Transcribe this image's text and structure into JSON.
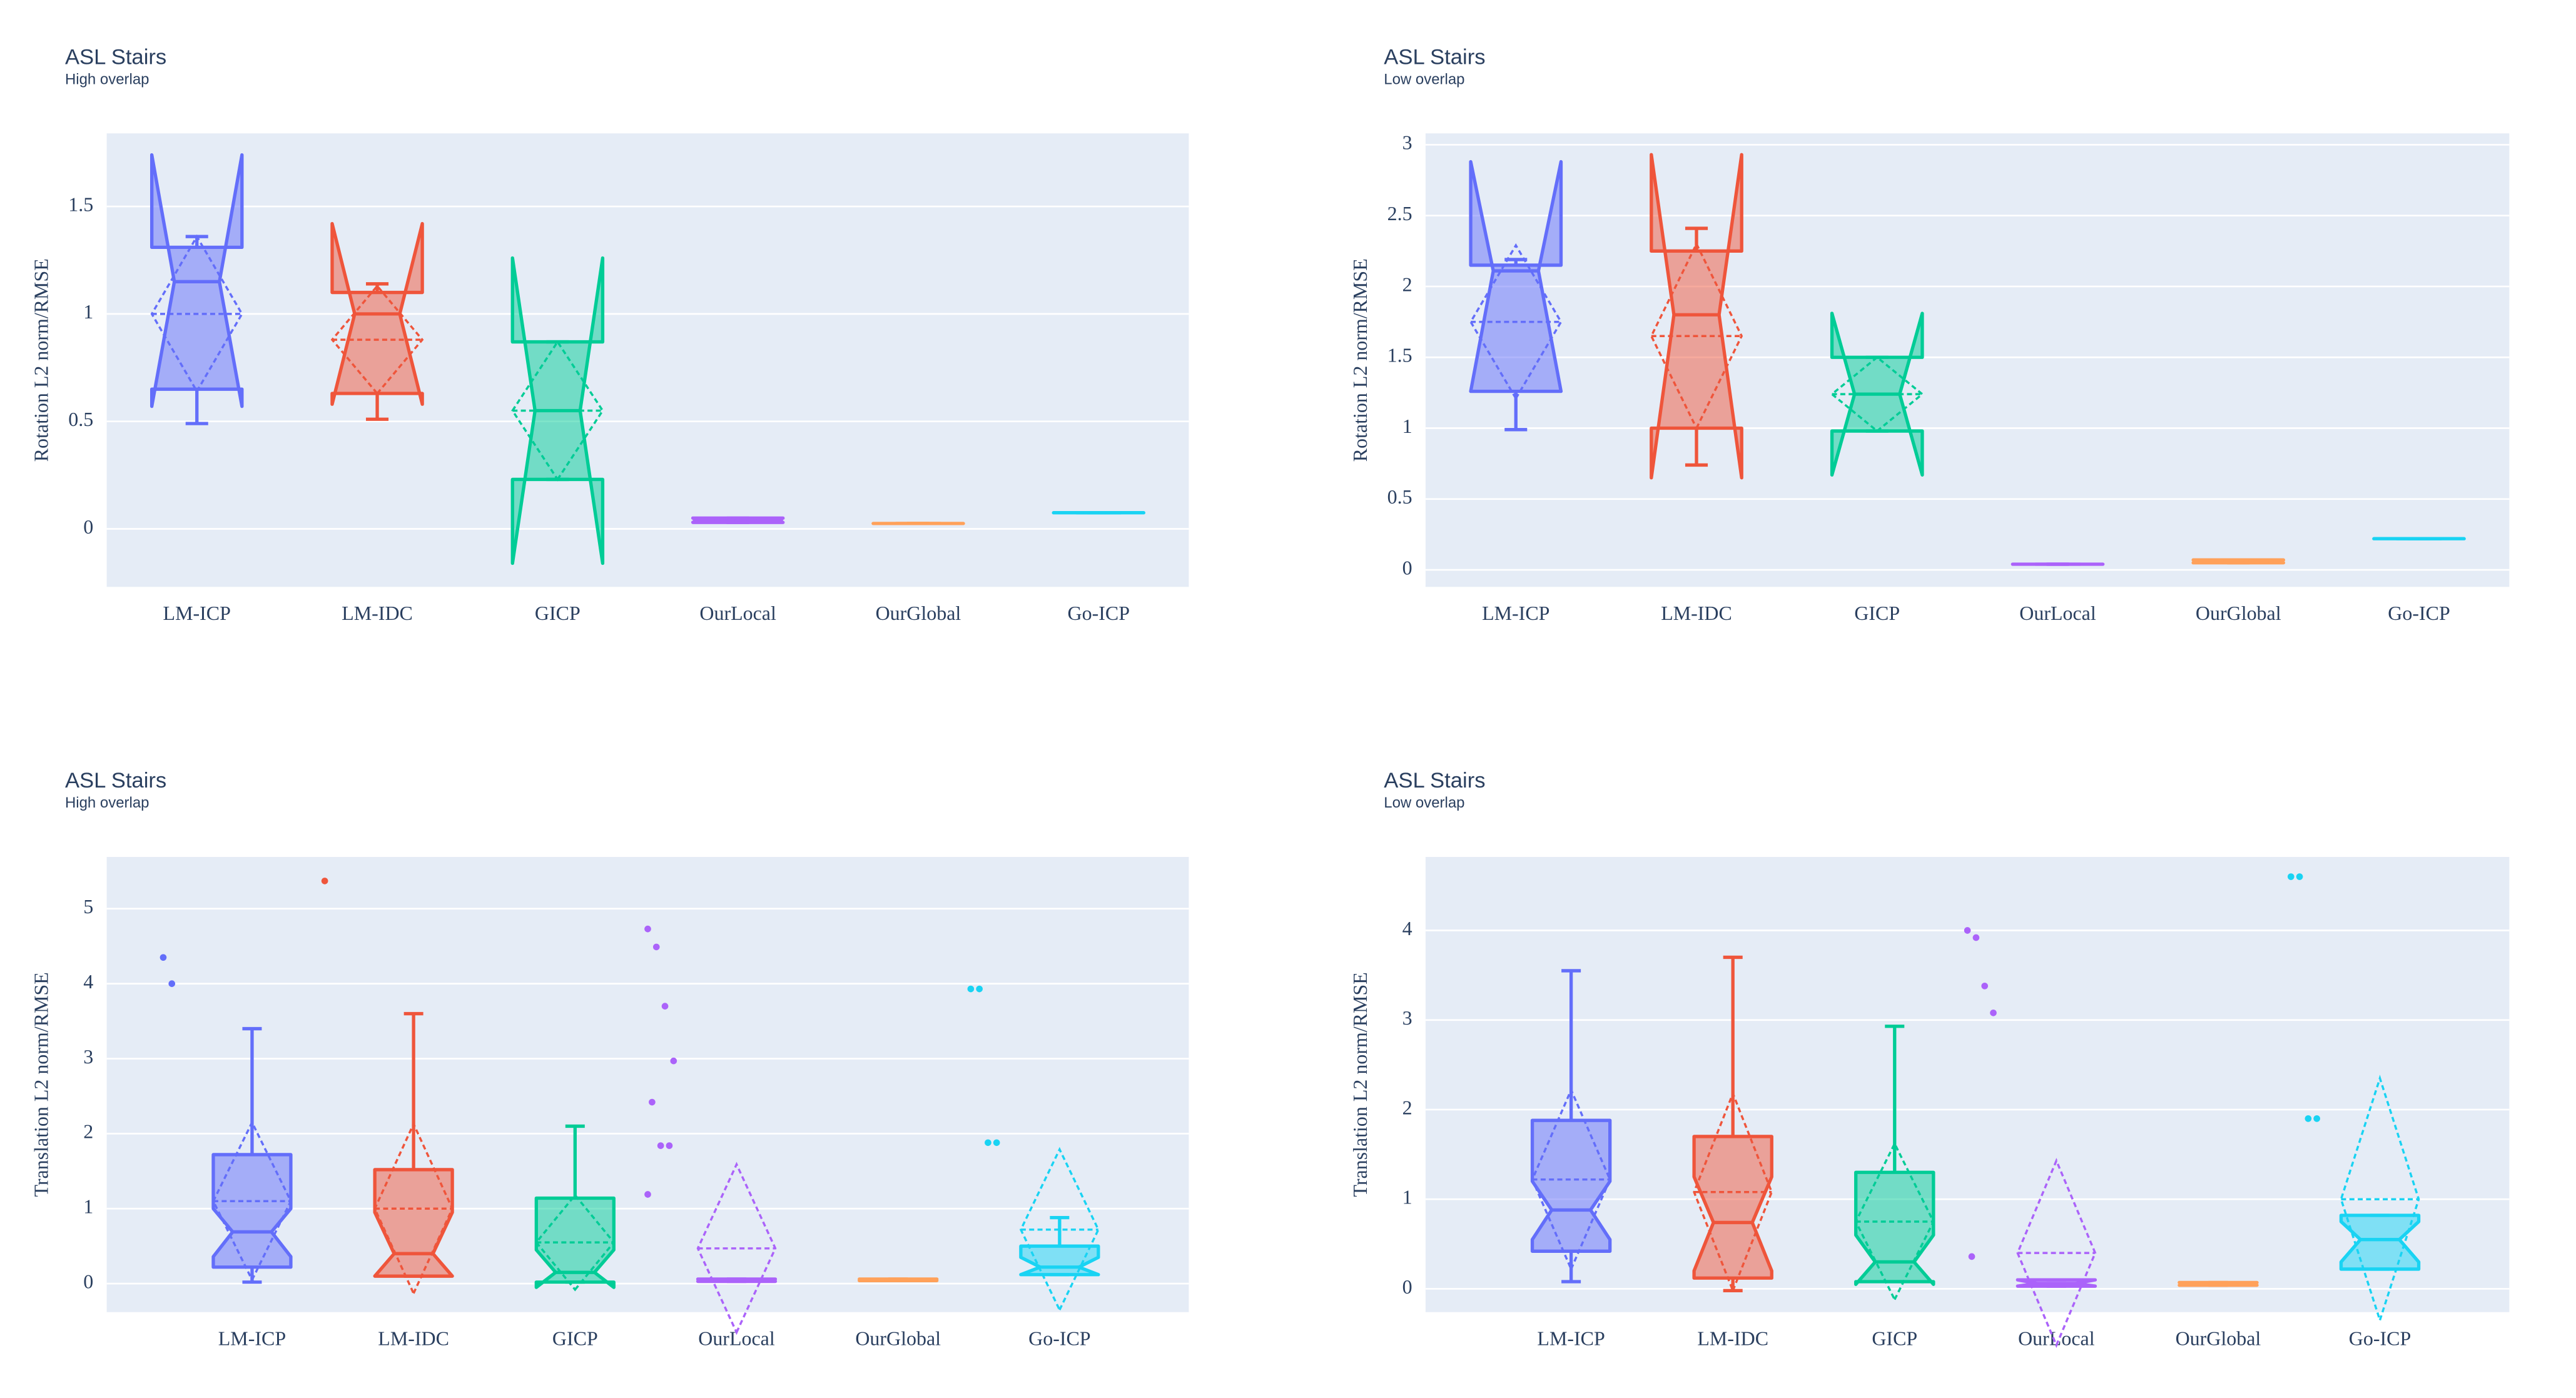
{
  "chart_data": [
    {
      "type": "box",
      "title": "ASL Stairs",
      "subtitle": "High overlap",
      "y_label": "Rotation L2 norm/RMSE",
      "ylim": [
        -0.27,
        1.84
      ],
      "yticks": [
        0,
        0.5,
        1,
        1.5
      ],
      "grid": true,
      "boxpoints": false,
      "series": [
        {
          "name": "LM-ICP",
          "color": "#636efa",
          "q1": 0.65,
          "median": 1.15,
          "q3": 1.31,
          "lowerfence": 0.49,
          "upperfence": 1.36,
          "notch_low": 0.57,
          "notch_high": 1.74,
          "mean": 1.0,
          "sd": 0.36
        },
        {
          "name": "LM-IDC",
          "color": "#ef553b",
          "q1": 0.63,
          "median": 1.0,
          "q3": 1.1,
          "lowerfence": 0.51,
          "upperfence": 1.14,
          "notch_low": 0.58,
          "notch_high": 1.42,
          "mean": 0.88,
          "sd": 0.25
        },
        {
          "name": "GICP",
          "color": "#00cc96",
          "q1": 0.23,
          "median": 0.55,
          "q3": 0.87,
          "lowerfence": 0.23,
          "upperfence": 0.87,
          "notch_low": -0.16,
          "notch_high": 1.26,
          "mean": 0.55,
          "sd": 0.32
        },
        {
          "name": "OurLocal",
          "color": "#ab63fa",
          "q1": 0.03,
          "median": 0.04,
          "q3": 0.05,
          "lowerfence": 0.03,
          "upperfence": 0.05,
          "notch_low": 0.03,
          "notch_high": 0.05,
          "mean": 0.04,
          "sd": 0.01
        },
        {
          "name": "OurGlobal",
          "color": "#ffa15a",
          "q1": 0.025,
          "median": 0.025,
          "q3": 0.025,
          "lowerfence": 0.025,
          "upperfence": 0.025,
          "notch_low": 0.025,
          "notch_high": 0.025,
          "mean": 0.025,
          "sd": 0
        },
        {
          "name": "Go-ICP",
          "color": "#19d3f3",
          "q1": 0.075,
          "median": 0.075,
          "q3": 0.075,
          "lowerfence": 0.075,
          "upperfence": 0.075,
          "notch_low": 0.075,
          "notch_high": 0.075,
          "mean": 0.075,
          "sd": 0
        }
      ]
    },
    {
      "type": "box",
      "title": "ASL Stairs",
      "subtitle": "Low overlap",
      "y_label": "Rotation L2 norm/RMSE",
      "ylim": [
        -0.12,
        3.08
      ],
      "yticks": [
        0,
        0.5,
        1,
        1.5,
        2,
        2.5,
        3
      ],
      "grid": true,
      "boxpoints": false,
      "series": [
        {
          "name": "LM-ICP",
          "color": "#636efa",
          "q1": 1.26,
          "median": 2.11,
          "q3": 2.15,
          "lowerfence": 0.99,
          "upperfence": 2.19,
          "notch_low": 1.26,
          "notch_high": 2.88,
          "mean": 1.75,
          "sd": 0.54
        },
        {
          "name": "LM-IDC",
          "color": "#ef553b",
          "q1": 1.0,
          "median": 1.8,
          "q3": 2.25,
          "lowerfence": 0.74,
          "upperfence": 2.41,
          "notch_low": 0.65,
          "notch_high": 2.93,
          "mean": 1.65,
          "sd": 0.65
        },
        {
          "name": "GICP",
          "color": "#00cc96",
          "q1": 0.98,
          "median": 1.24,
          "q3": 1.5,
          "lowerfence": 0.98,
          "upperfence": 1.5,
          "notch_low": 0.67,
          "notch_high": 1.81,
          "mean": 1.24,
          "sd": 0.26
        },
        {
          "name": "OurLocal",
          "color": "#ab63fa",
          "q1": 0.04,
          "median": 0.04,
          "q3": 0.04,
          "lowerfence": 0.04,
          "upperfence": 0.04,
          "notch_low": 0.04,
          "notch_high": 0.04,
          "mean": 0.04,
          "sd": 0
        },
        {
          "name": "OurGlobal",
          "color": "#ffa15a",
          "q1": 0.05,
          "median": 0.06,
          "q3": 0.07,
          "lowerfence": 0.05,
          "upperfence": 0.07,
          "notch_low": 0.05,
          "notch_high": 0.07,
          "mean": 0.06,
          "sd": 0.01
        },
        {
          "name": "Go-ICP",
          "color": "#19d3f3",
          "q1": 0.22,
          "median": 0.22,
          "q3": 0.22,
          "lowerfence": 0.22,
          "upperfence": 0.22,
          "notch_low": 0.22,
          "notch_high": 0.22,
          "mean": 0.22,
          "sd": 0
        }
      ]
    },
    {
      "type": "box",
      "title": "ASL Stairs",
      "subtitle": "High overlap",
      "y_label": "Translation L2 norm/RMSE",
      "ylim": [
        -0.38,
        5.69
      ],
      "yticks": [
        0,
        1,
        2,
        3,
        4,
        5
      ],
      "grid": true,
      "boxpoints": "outliers",
      "series": [
        {
          "name": "LM-ICP",
          "color": "#636efa",
          "q1": 0.22,
          "median": 0.69,
          "q3": 1.72,
          "lowerfence": 0.02,
          "upperfence": 3.4,
          "notch_low": 0.36,
          "notch_high": 1.0,
          "mean": 1.1,
          "sd": 1.05,
          "outliers": [
            4.35,
            4.0
          ]
        },
        {
          "name": "LM-IDC",
          "color": "#ef553b",
          "q1": 0.1,
          "median": 0.4,
          "q3": 1.52,
          "lowerfence": 0.1,
          "upperfence": 3.6,
          "notch_low": 0.1,
          "notch_high": 0.95,
          "mean": 1.0,
          "sd": 1.13,
          "outliers": [
            5.37
          ]
        },
        {
          "name": "GICP",
          "color": "#00cc96",
          "q1": 0.02,
          "median": 0.15,
          "q3": 1.14,
          "lowerfence": 0.02,
          "upperfence": 2.1,
          "notch_low": -0.05,
          "notch_high": 0.45,
          "mean": 0.55,
          "sd": 0.63,
          "outliers": []
        },
        {
          "name": "OurLocal",
          "color": "#ab63fa",
          "q1": 0.03,
          "median": 0.04,
          "q3": 0.06,
          "lowerfence": 0.03,
          "upperfence": 0.06,
          "notch_low": 0.03,
          "notch_high": 0.06,
          "mean": 0.47,
          "sd": 1.12,
          "outliers": [
            4.73,
            4.49,
            3.7,
            2.97,
            2.42,
            1.84,
            1.84,
            1.19
          ]
        },
        {
          "name": "OurGlobal",
          "color": "#ffa15a",
          "q1": 0.04,
          "median": 0.05,
          "q3": 0.06,
          "lowerfence": 0.04,
          "upperfence": 0.06,
          "notch_low": 0.04,
          "notch_high": 0.06,
          "mean": 0.05,
          "sd": 0.01,
          "outliers": []
        },
        {
          "name": "Go-ICP",
          "color": "#19d3f3",
          "q1": 0.12,
          "median": 0.22,
          "q3": 0.5,
          "lowerfence": 0.12,
          "upperfence": 0.88,
          "notch_low": 0.12,
          "notch_high": 0.35,
          "mean": 0.72,
          "sd": 1.07,
          "outliers": [
            3.93,
            3.93,
            1.88,
            1.88
          ]
        }
      ]
    },
    {
      "type": "box",
      "title": "ASL Stairs",
      "subtitle": "Low overlap",
      "y_label": "Translation L2 norm/RMSE",
      "ylim": [
        -0.26,
        4.82
      ],
      "yticks": [
        0,
        1,
        2,
        3,
        4
      ],
      "grid": true,
      "boxpoints": "outliers",
      "series": [
        {
          "name": "LM-ICP",
          "color": "#636efa",
          "q1": 0.42,
          "median": 0.88,
          "q3": 1.88,
          "lowerfence": 0.08,
          "upperfence": 3.55,
          "notch_low": 0.55,
          "notch_high": 1.2,
          "mean": 1.22,
          "sd": 1.0,
          "outliers": []
        },
        {
          "name": "LM-IDC",
          "color": "#ef553b",
          "q1": 0.12,
          "median": 0.74,
          "q3": 1.7,
          "lowerfence": -0.02,
          "upperfence": 3.7,
          "notch_low": 0.2,
          "notch_high": 1.25,
          "mean": 1.08,
          "sd": 1.1,
          "outliers": []
        },
        {
          "name": "GICP",
          "color": "#00cc96",
          "q1": 0.08,
          "median": 0.3,
          "q3": 1.3,
          "lowerfence": 0.08,
          "upperfence": 2.93,
          "notch_low": 0.05,
          "notch_high": 0.6,
          "mean": 0.75,
          "sd": 0.87,
          "outliers": []
        },
        {
          "name": "OurLocal",
          "color": "#ab63fa",
          "q1": 0.03,
          "median": 0.06,
          "q3": 0.1,
          "lowerfence": 0.03,
          "upperfence": 0.1,
          "notch_low": 0.03,
          "notch_high": 0.1,
          "mean": 0.4,
          "sd": 1.03,
          "outliers": [
            4.0,
            3.92,
            3.38,
            3.08,
            0.36
          ]
        },
        {
          "name": "OurGlobal",
          "color": "#ffa15a",
          "q1": 0.04,
          "median": 0.05,
          "q3": 0.07,
          "lowerfence": 0.04,
          "upperfence": 0.07,
          "notch_low": 0.04,
          "notch_high": 0.07,
          "mean": 0.05,
          "sd": 0.01,
          "outliers": []
        },
        {
          "name": "Go-ICP",
          "color": "#19d3f3",
          "q1": 0.22,
          "median": 0.55,
          "q3": 0.82,
          "lowerfence": 0.22,
          "upperfence": 0.82,
          "notch_low": 0.3,
          "notch_high": 0.75,
          "mean": 1.0,
          "sd": 1.35,
          "outliers": [
            4.6,
            4.6,
            1.9,
            1.9
          ]
        }
      ]
    }
  ]
}
